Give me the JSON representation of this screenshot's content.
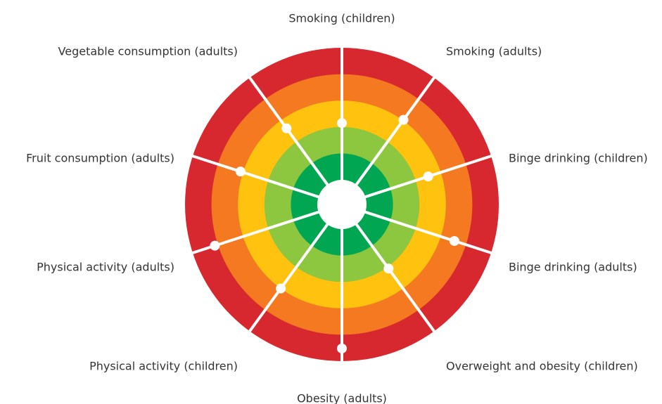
{
  "chart_data": {
    "type": "radial",
    "categories": [
      "Smoking (children)",
      "Smoking (adults)",
      "Binge drinking (children)",
      "Binge drinking (adults)",
      "Overweight and obesity (children)",
      "Obesity (adults)",
      "Physical activity (children)",
      "Physical activity (adults)",
      "Fruit consumption (adults)",
      "Vegetable consumption (adults)"
    ],
    "values": [
      2.15,
      3.03,
      2.5,
      3.54,
      2.07,
      4.52,
      3.0,
      4.12,
      3.1,
      2.63
    ],
    "ylim": [
      0,
      5
    ],
    "yticks": [
      0,
      1,
      2,
      3,
      4,
      5
    ],
    "ring_colors": [
      "#00a651",
      "#8dc63f",
      "#ffc20e",
      "#f47920",
      "#d7282f"
    ],
    "marker_color": "#ffffff"
  }
}
